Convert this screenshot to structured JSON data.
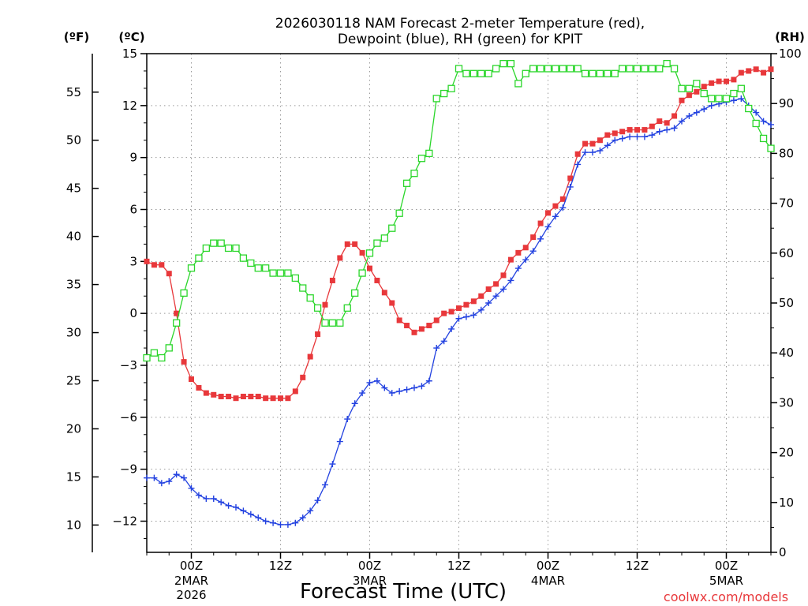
{
  "chart_data": {
    "type": "line",
    "title": "2026030118 NAM Forecast 2-meter Temperature (red), Dewpoint (blue), RH (green) for KPIT",
    "title_lines": [
      "2026030118 NAM Forecast 2-meter Temperature (red),",
      "Dewpoint (blue), RH (green) for KPIT"
    ],
    "xlabel": "Forecast Time (UTC)",
    "credit": "coolwx.com/models",
    "units": {
      "fahrenheit": "(ºF)",
      "celsius": "(ºC)",
      "rh": "(RH)"
    },
    "x_unit": "forecast hour",
    "xlim": [
      0,
      84
    ],
    "ylim_c": [
      -13.8,
      15.0
    ],
    "ylim_rh": [
      0,
      100
    ],
    "yticks_c": [
      15,
      12,
      9,
      6,
      3,
      0,
      -3,
      -6,
      -9,
      -12
    ],
    "yticks_c_labels": [
      "15",
      "12",
      "9",
      "6",
      "3",
      "0",
      "−3",
      "−6",
      "−9",
      "−12"
    ],
    "yticks_f": [
      55,
      50,
      45,
      40,
      35,
      30,
      25,
      20,
      15,
      10
    ],
    "yticks_f_labels": [
      "55",
      "50",
      "45",
      "40",
      "35",
      "30",
      "25",
      "20",
      "15",
      "10"
    ],
    "yticks_rh": [
      100,
      90,
      80,
      70,
      60,
      50,
      40,
      30,
      20,
      10,
      0
    ],
    "yticks_rh_labels": [
      "100",
      "90",
      "80",
      "70",
      "60",
      "50",
      "40",
      "30",
      "20",
      "10",
      "0"
    ],
    "xticks": [
      {
        "hour": 6,
        "label": "00Z",
        "sub": [
          "2MAR",
          "2026"
        ]
      },
      {
        "hour": 18,
        "label": "12Z",
        "sub": []
      },
      {
        "hour": 30,
        "label": "00Z",
        "sub": [
          "3MAR"
        ]
      },
      {
        "hour": 42,
        "label": "12Z",
        "sub": []
      },
      {
        "hour": 54,
        "label": "00Z",
        "sub": [
          "4MAR"
        ]
      },
      {
        "hour": 66,
        "label": "12Z",
        "sub": []
      },
      {
        "hour": 78,
        "label": "00Z",
        "sub": [
          "5MAR"
        ]
      }
    ],
    "grid": true,
    "series": [
      {
        "name": "2-meter Temperature",
        "unit": "C",
        "color": "#e8383b",
        "marker": "filled-square",
        "points": [
          [
            0,
            3.0
          ],
          [
            1,
            2.8
          ],
          [
            2,
            2.8
          ],
          [
            3,
            2.3
          ],
          [
            4,
            0.0
          ],
          [
            5,
            -2.8
          ],
          [
            6,
            -3.8
          ],
          [
            7,
            -4.3
          ],
          [
            8,
            -4.6
          ],
          [
            9,
            -4.7
          ],
          [
            10,
            -4.8
          ],
          [
            11,
            -4.8
          ],
          [
            12,
            -4.9
          ],
          [
            13,
            -4.8
          ],
          [
            14,
            -4.8
          ],
          [
            15,
            -4.8
          ],
          [
            16,
            -4.9
          ],
          [
            17,
            -4.9
          ],
          [
            18,
            -4.9
          ],
          [
            19,
            -4.9
          ],
          [
            20,
            -4.5
          ],
          [
            21,
            -3.7
          ],
          [
            22,
            -2.5
          ],
          [
            23,
            -1.2
          ],
          [
            24,
            0.5
          ],
          [
            25,
            1.9
          ],
          [
            26,
            3.2
          ],
          [
            27,
            4.0
          ],
          [
            28,
            4.0
          ],
          [
            29,
            3.5
          ],
          [
            30,
            2.6
          ],
          [
            31,
            1.9
          ],
          [
            32,
            1.2
          ],
          [
            33,
            0.6
          ],
          [
            34,
            -0.4
          ],
          [
            35,
            -0.7
          ],
          [
            36,
            -1.1
          ],
          [
            37,
            -0.9
          ],
          [
            38,
            -0.7
          ],
          [
            39,
            -0.4
          ],
          [
            40,
            0.0
          ],
          [
            41,
            0.1
          ],
          [
            42,
            0.3
          ],
          [
            43,
            0.5
          ],
          [
            44,
            0.7
          ],
          [
            45,
            1.0
          ],
          [
            46,
            1.4
          ],
          [
            47,
            1.7
          ],
          [
            48,
            2.2
          ],
          [
            49,
            3.1
          ],
          [
            50,
            3.5
          ],
          [
            51,
            3.8
          ],
          [
            52,
            4.4
          ],
          [
            53,
            5.2
          ],
          [
            54,
            5.8
          ],
          [
            55,
            6.2
          ],
          [
            56,
            6.6
          ],
          [
            57,
            7.8
          ],
          [
            58,
            9.2
          ],
          [
            59,
            9.8
          ],
          [
            60,
            9.8
          ],
          [
            61,
            10.0
          ],
          [
            62,
            10.3
          ],
          [
            63,
            10.4
          ],
          [
            64,
            10.5
          ],
          [
            65,
            10.6
          ],
          [
            66,
            10.6
          ],
          [
            67,
            10.6
          ],
          [
            68,
            10.8
          ],
          [
            69,
            11.1
          ],
          [
            70,
            11.0
          ],
          [
            71,
            11.4
          ],
          [
            72,
            12.3
          ],
          [
            73,
            12.6
          ],
          [
            74,
            12.8
          ],
          [
            75,
            13.1
          ],
          [
            76,
            13.3
          ],
          [
            77,
            13.4
          ],
          [
            78,
            13.4
          ],
          [
            79,
            13.5
          ],
          [
            80,
            13.9
          ],
          [
            81,
            14.0
          ],
          [
            82,
            14.1
          ],
          [
            83,
            13.9
          ],
          [
            84,
            14.1
          ]
        ]
      },
      {
        "name": "2-meter Dewpoint",
        "unit": "C",
        "color": "#2342e0",
        "marker": "plus",
        "points": [
          [
            0,
            -9.5
          ],
          [
            1,
            -9.5
          ],
          [
            2,
            -9.8
          ],
          [
            3,
            -9.7
          ],
          [
            4,
            -9.3
          ],
          [
            5,
            -9.5
          ],
          [
            6,
            -10.1
          ],
          [
            7,
            -10.5
          ],
          [
            8,
            -10.7
          ],
          [
            9,
            -10.7
          ],
          [
            10,
            -10.9
          ],
          [
            11,
            -11.1
          ],
          [
            12,
            -11.2
          ],
          [
            13,
            -11.4
          ],
          [
            14,
            -11.6
          ],
          [
            15,
            -11.8
          ],
          [
            16,
            -12.0
          ],
          [
            17,
            -12.1
          ],
          [
            18,
            -12.2
          ],
          [
            19,
            -12.2
          ],
          [
            20,
            -12.1
          ],
          [
            21,
            -11.8
          ],
          [
            22,
            -11.4
          ],
          [
            23,
            -10.8
          ],
          [
            24,
            -9.9
          ],
          [
            25,
            -8.7
          ],
          [
            26,
            -7.4
          ],
          [
            27,
            -6.1
          ],
          [
            28,
            -5.2
          ],
          [
            29,
            -4.6
          ],
          [
            30,
            -4.0
          ],
          [
            31,
            -3.9
          ],
          [
            32,
            -4.3
          ],
          [
            33,
            -4.6
          ],
          [
            34,
            -4.5
          ],
          [
            35,
            -4.4
          ],
          [
            36,
            -4.3
          ],
          [
            37,
            -4.2
          ],
          [
            38,
            -3.9
          ],
          [
            39,
            -2.0
          ],
          [
            40,
            -1.6
          ],
          [
            41,
            -0.9
          ],
          [
            42,
            -0.3
          ],
          [
            43,
            -0.2
          ],
          [
            44,
            -0.1
          ],
          [
            45,
            0.2
          ],
          [
            46,
            0.6
          ],
          [
            47,
            1.0
          ],
          [
            48,
            1.4
          ],
          [
            49,
            1.9
          ],
          [
            50,
            2.6
          ],
          [
            51,
            3.1
          ],
          [
            52,
            3.6
          ],
          [
            53,
            4.3
          ],
          [
            54,
            5.0
          ],
          [
            55,
            5.6
          ],
          [
            56,
            6.1
          ],
          [
            57,
            7.3
          ],
          [
            58,
            8.6
          ],
          [
            59,
            9.3
          ],
          [
            60,
            9.3
          ],
          [
            61,
            9.4
          ],
          [
            62,
            9.7
          ],
          [
            63,
            10.0
          ],
          [
            64,
            10.1
          ],
          [
            65,
            10.2
          ],
          [
            66,
            10.2
          ],
          [
            67,
            10.2
          ],
          [
            68,
            10.3
          ],
          [
            69,
            10.5
          ],
          [
            70,
            10.6
          ],
          [
            71,
            10.7
          ],
          [
            72,
            11.1
          ],
          [
            73,
            11.4
          ],
          [
            74,
            11.6
          ],
          [
            75,
            11.8
          ],
          [
            76,
            12.0
          ],
          [
            77,
            12.1
          ],
          [
            78,
            12.2
          ],
          [
            79,
            12.3
          ],
          [
            80,
            12.4
          ],
          [
            81,
            12.0
          ],
          [
            82,
            11.6
          ],
          [
            83,
            11.1
          ],
          [
            84,
            10.9
          ]
        ]
      },
      {
        "name": "Relative Humidity",
        "unit": "RH",
        "color": "#2bd62b",
        "marker": "open-square",
        "points": [
          [
            0,
            39
          ],
          [
            1,
            40
          ],
          [
            2,
            39
          ],
          [
            3,
            41
          ],
          [
            4,
            46
          ],
          [
            5,
            52
          ],
          [
            6,
            57
          ],
          [
            7,
            59
          ],
          [
            8,
            61
          ],
          [
            9,
            62
          ],
          [
            10,
            62
          ],
          [
            11,
            61
          ],
          [
            12,
            61
          ],
          [
            13,
            59
          ],
          [
            14,
            58
          ],
          [
            15,
            57
          ],
          [
            16,
            57
          ],
          [
            17,
            56
          ],
          [
            18,
            56
          ],
          [
            19,
            56
          ],
          [
            20,
            55
          ],
          [
            21,
            53
          ],
          [
            22,
            51
          ],
          [
            23,
            49
          ],
          [
            24,
            46
          ],
          [
            25,
            46
          ],
          [
            26,
            46
          ],
          [
            27,
            49
          ],
          [
            28,
            52
          ],
          [
            29,
            56
          ],
          [
            30,
            60
          ],
          [
            31,
            62
          ],
          [
            32,
            63
          ],
          [
            33,
            65
          ],
          [
            34,
            68
          ],
          [
            35,
            74
          ],
          [
            36,
            76
          ],
          [
            37,
            79
          ],
          [
            38,
            80
          ],
          [
            39,
            91
          ],
          [
            40,
            92
          ],
          [
            41,
            93
          ],
          [
            42,
            97
          ],
          [
            43,
            96
          ],
          [
            44,
            96
          ],
          [
            45,
            96
          ],
          [
            46,
            96
          ],
          [
            47,
            97
          ],
          [
            48,
            98
          ],
          [
            49,
            98
          ],
          [
            50,
            94
          ],
          [
            51,
            96
          ],
          [
            52,
            97
          ],
          [
            53,
            97
          ],
          [
            54,
            97
          ],
          [
            55,
            97
          ],
          [
            56,
            97
          ],
          [
            57,
            97
          ],
          [
            58,
            97
          ],
          [
            59,
            96
          ],
          [
            60,
            96
          ],
          [
            61,
            96
          ],
          [
            62,
            96
          ],
          [
            63,
            96
          ],
          [
            64,
            97
          ],
          [
            65,
            97
          ],
          [
            66,
            97
          ],
          [
            67,
            97
          ],
          [
            68,
            97
          ],
          [
            69,
            97
          ],
          [
            70,
            98
          ],
          [
            71,
            97
          ],
          [
            72,
            93
          ],
          [
            73,
            93
          ],
          [
            74,
            94
          ],
          [
            75,
            92
          ],
          [
            76,
            91
          ],
          [
            77,
            91
          ],
          [
            78,
            91
          ],
          [
            79,
            92
          ],
          [
            80,
            93
          ],
          [
            81,
            89
          ],
          [
            82,
            86
          ],
          [
            83,
            83
          ],
          [
            84,
            81
          ]
        ]
      }
    ]
  }
}
